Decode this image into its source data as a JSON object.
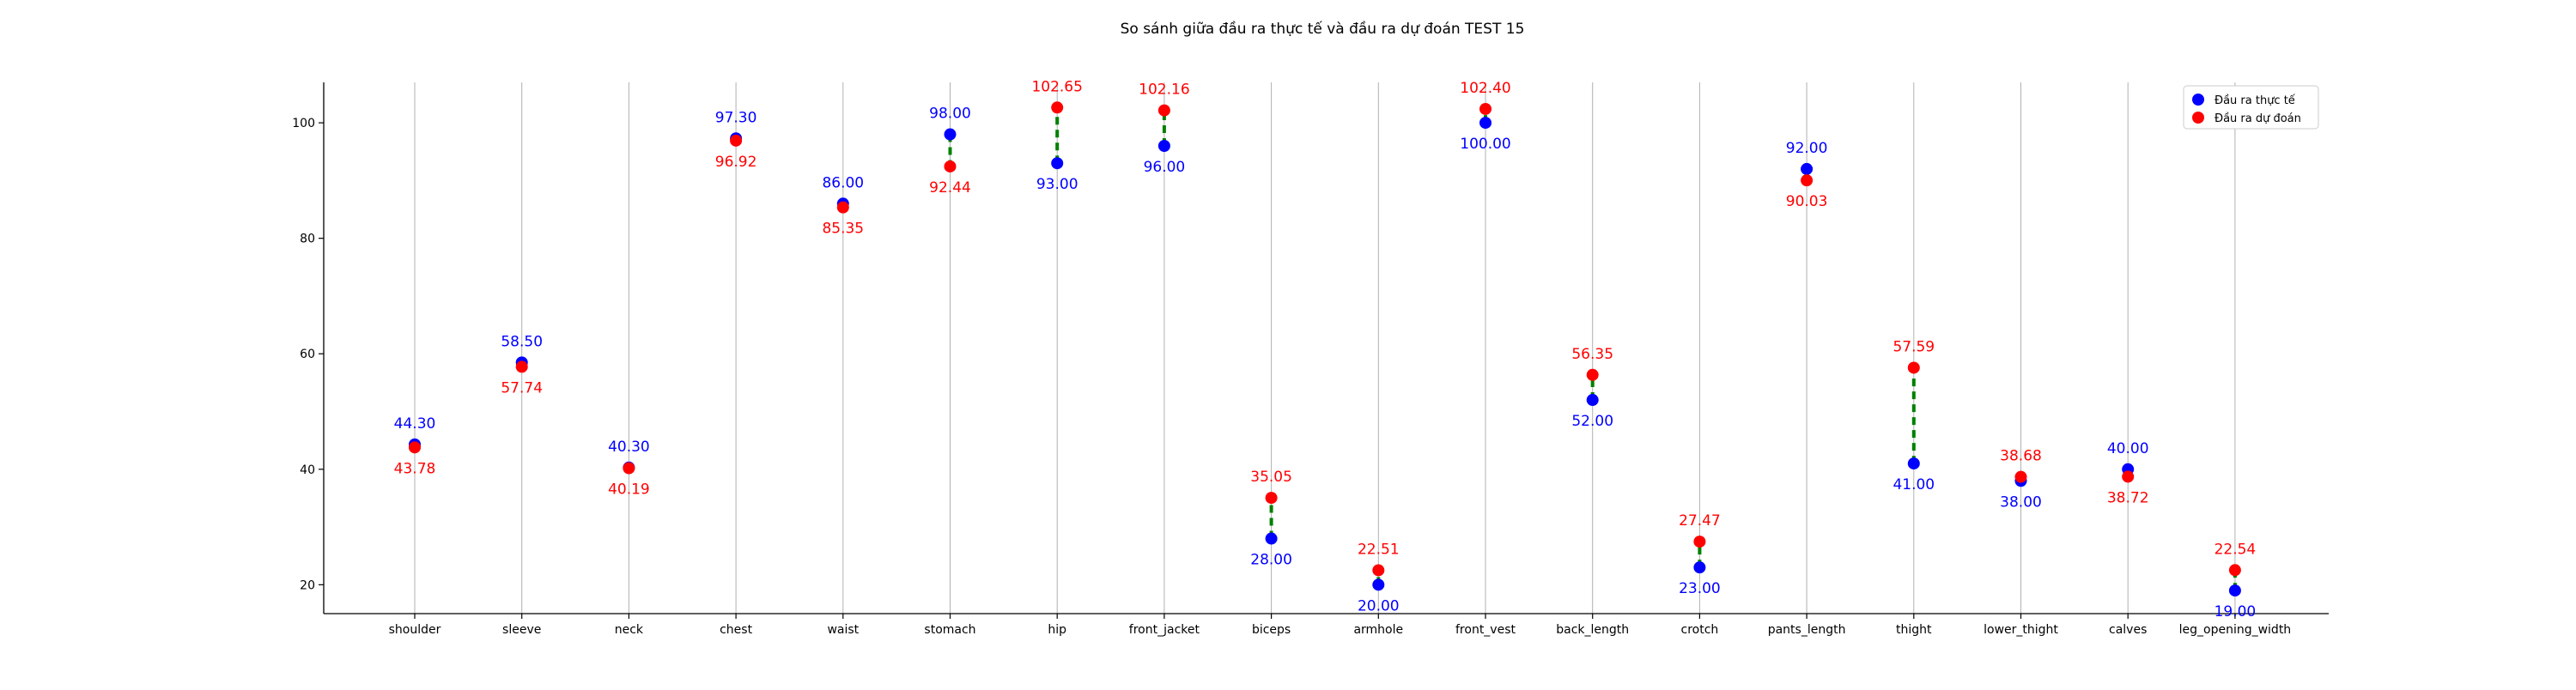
{
  "chart_data": {
    "type": "scatter",
    "title": "So sánh giữa đầu ra thực tế và đầu ra dự đoán TEST 15",
    "categories": [
      "shoulder",
      "sleeve",
      "neck",
      "chest",
      "waist",
      "stomach",
      "hip",
      "front_jacket",
      "biceps",
      "armhole",
      "front_vest",
      "back_length",
      "crotch",
      "pants_length",
      "thight",
      "lower_thight",
      "calves",
      "leg_opening_width"
    ],
    "series": [
      {
        "name": "Đầu ra thực tế",
        "color": "#0000ff",
        "values": [
          44.3,
          58.5,
          40.3,
          97.3,
          86.0,
          98.0,
          93.0,
          96.0,
          28.0,
          20.0,
          100.0,
          52.0,
          23.0,
          92.0,
          41.0,
          38.0,
          40.0,
          19.0
        ],
        "labels": [
          "44.30",
          "58.50",
          "40.30",
          "97.30",
          "86.00",
          "98.00",
          "93.00",
          "96.00",
          "28.00",
          "20.00",
          "100.00",
          "52.00",
          "23.00",
          "92.00",
          "41.00",
          "38.00",
          "40.00",
          "19.00"
        ]
      },
      {
        "name": "Đầu ra dự đoán",
        "color": "#ff0000",
        "values": [
          43.78,
          57.74,
          40.19,
          96.92,
          85.35,
          92.44,
          102.65,
          102.16,
          35.05,
          22.51,
          102.4,
          56.35,
          27.47,
          90.03,
          57.59,
          38.68,
          38.72,
          22.54
        ],
        "labels": [
          "43.78",
          "57.74",
          "40.19",
          "96.92",
          "85.35",
          "92.44",
          "102.65",
          "102.16",
          "35.05",
          "22.51",
          "102.40",
          "56.35",
          "27.47",
          "90.03",
          "57.59",
          "38.68",
          "38.72",
          "22.54"
        ]
      }
    ],
    "connector_color": "#008000",
    "yticks": [
      "20",
      "40",
      "60",
      "80",
      "100"
    ],
    "ylim": [
      15,
      107
    ],
    "xlabel": "",
    "ylabel": "",
    "grid": "vertical",
    "legend_position": "top-right"
  }
}
